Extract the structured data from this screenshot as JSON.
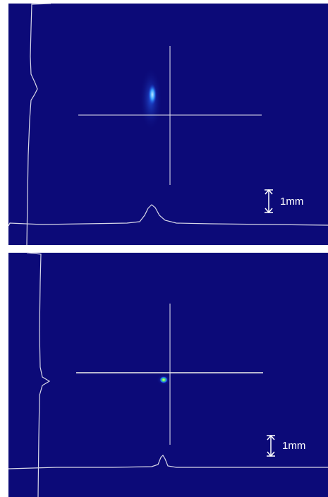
{
  "panels": [
    {
      "scale_label": "1mm"
    },
    {
      "scale_label": "1mm"
    }
  ]
}
